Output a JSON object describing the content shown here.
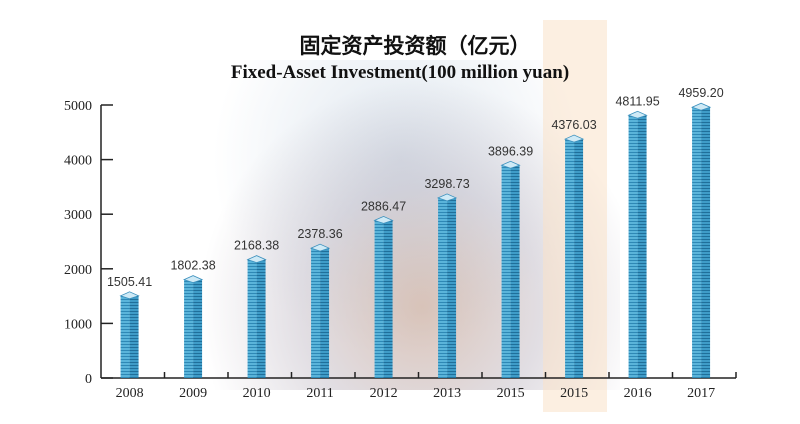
{
  "chart_data": {
    "type": "bar",
    "title": "固定资产投资额（亿元）",
    "subtitle": "Fixed-Asset Investment(100 million yuan)",
    "xlabel": "",
    "ylabel": "",
    "categories": [
      "2008",
      "2009",
      "2010",
      "2011",
      "2012",
      "2013",
      "2015",
      "2015",
      "2016",
      "2017"
    ],
    "values": [
      1505.41,
      1802.38,
      2168.38,
      2378.36,
      2886.47,
      3298.73,
      3896.39,
      4376.03,
      4811.95,
      4959.2
    ],
    "value_labels": [
      "1505.41",
      "1802.38",
      "2168.38",
      "2378.36",
      "2886.47",
      "3298.73",
      "3896.39",
      "4376.03",
      "4811.95",
      "4959.20"
    ],
    "ylim": [
      0,
      5000
    ],
    "yticks": [
      0,
      1000,
      2000,
      3000,
      4000,
      5000
    ],
    "grid": false,
    "highlight_index": 7,
    "colors": {
      "bar": "#4aa6cf",
      "bar_dark": "#2f86b3",
      "bar_top": "#cfeaf6",
      "highlight": "#fae1c8"
    }
  }
}
